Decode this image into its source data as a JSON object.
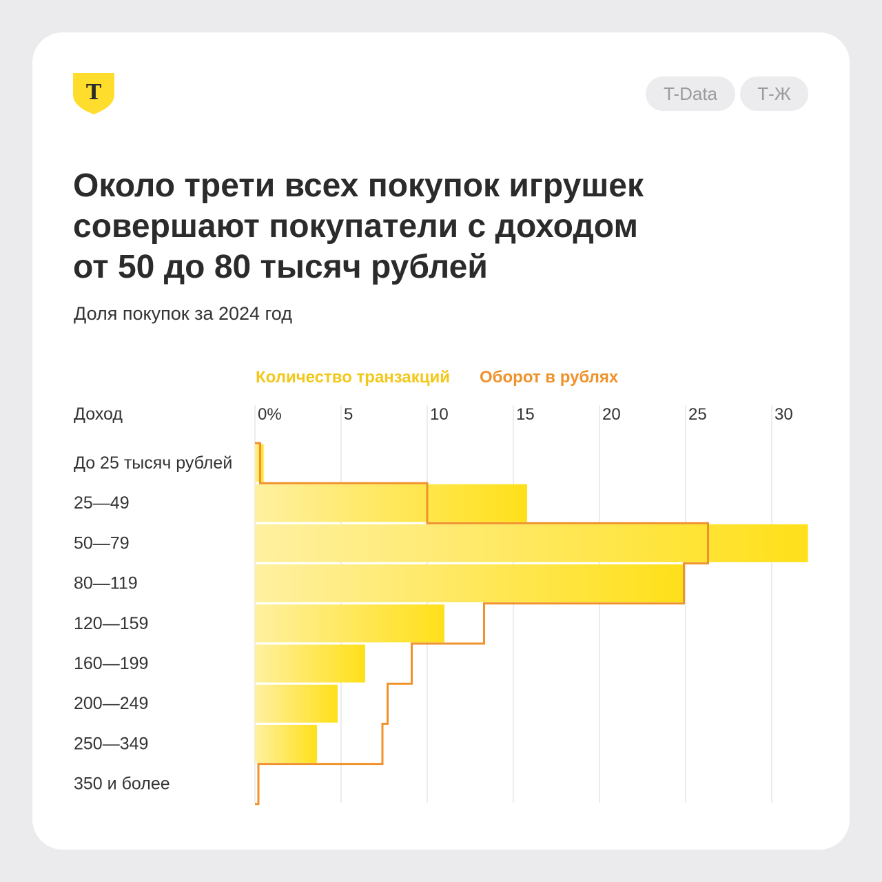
{
  "header": {
    "brand_letter": "Т",
    "tags": [
      "T-Data",
      "Т-Ж"
    ]
  },
  "title_lines": [
    "Около трети всех покупок игрушек",
    "совершают покупатели с доходом",
    "от 50 до 80 тысяч рублей"
  ],
  "subtitle": "Доля покупок за 2024 год",
  "colors": {
    "accent": "#ffdd2d",
    "bar_light": "#fff0a0",
    "bar_dark": "#ffe01a",
    "turnover_line": "#f0922b",
    "transactions_legend": "#f3c81a",
    "turnover_legend": "#f0922b",
    "grid": "#e6e6e6"
  },
  "chart_data": {
    "type": "bar",
    "orientation": "horizontal",
    "category_axis_label": "Доход",
    "categories": [
      "До 25 тысяч рублей",
      "25—49",
      "50—79",
      "80—119",
      "120—159",
      "160—199",
      "200—249",
      "250—349",
      "350 и более"
    ],
    "series": [
      {
        "name": "Количество транзакций",
        "style": "bar",
        "values": [
          0.5,
          15.8,
          32.1,
          24.9,
          11.0,
          6.4,
          4.8,
          3.6,
          0.0
        ]
      },
      {
        "name": "Оборот в рублях",
        "style": "step-outline",
        "values": [
          0.3,
          10.0,
          26.3,
          24.9,
          13.3,
          9.1,
          7.7,
          7.4,
          0.2
        ]
      }
    ],
    "ticks": [
      0,
      5,
      10,
      15,
      20,
      25,
      30
    ],
    "tick_labels": [
      "0%",
      "5",
      "10",
      "15",
      "20",
      "25",
      "30"
    ],
    "xlim": [
      0,
      32.1
    ],
    "grid": true,
    "legend": "top"
  }
}
